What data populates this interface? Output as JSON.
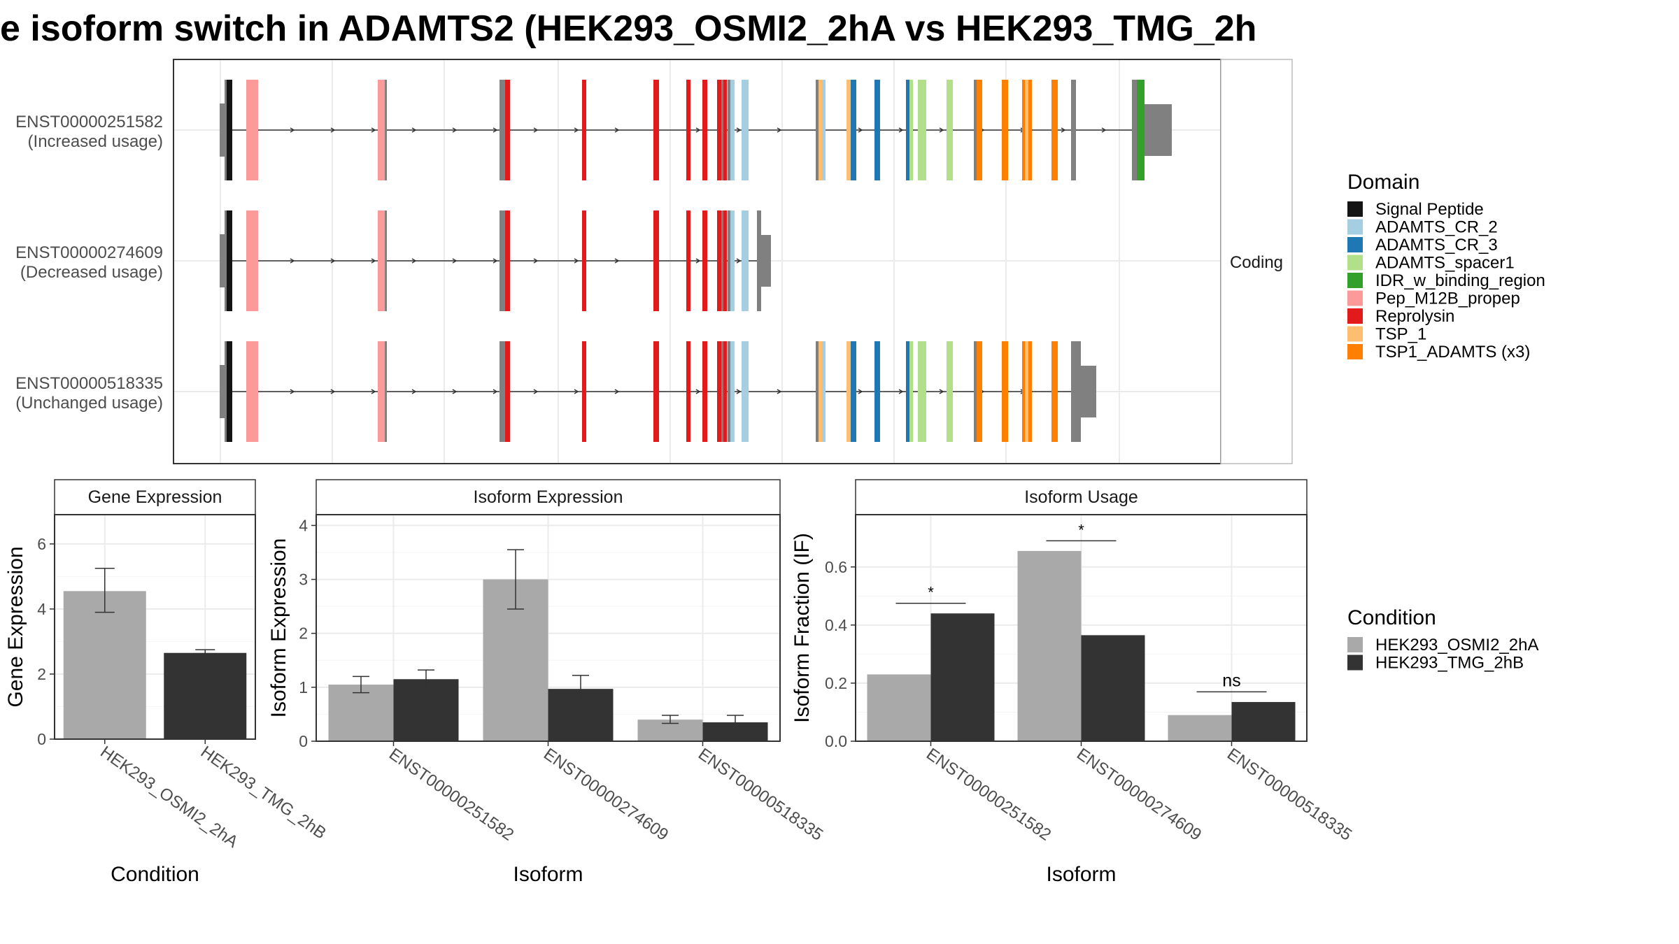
{
  "title": "e isoform switch in ADAMTS2 (HEK293_OSMI2_2hA vs HEK293_TMG_2h",
  "structure": {
    "strip_label": "Coding",
    "isoforms": [
      {
        "id": "ENST00000251582",
        "note": "(Increased usage)"
      },
      {
        "id": "ENST00000274609",
        "note": "(Decreased usage)"
      },
      {
        "id": "ENST00000518335",
        "note": "(Unchanged usage)"
      }
    ]
  },
  "domain_legend": {
    "title": "Domain",
    "items": [
      {
        "label": "Signal Peptide",
        "color": "#141414"
      },
      {
        "label": "ADAMTS_CR_2",
        "color": "#a6cee3"
      },
      {
        "label": "ADAMTS_CR_3",
        "color": "#1f78b4"
      },
      {
        "label": "ADAMTS_spacer1",
        "color": "#b2df8a"
      },
      {
        "label": "IDR_w_binding_region",
        "color": "#33a02c"
      },
      {
        "label": "Pep_M12B_propep",
        "color": "#fb9a99"
      },
      {
        "label": "Reprolysin",
        "color": "#e31a1c"
      },
      {
        "label": "TSP_1",
        "color": "#fdbf6f"
      },
      {
        "label": "TSP1_ADAMTS (x3)",
        "color": "#ff7f00"
      }
    ]
  },
  "condition_legend": {
    "title": "Condition",
    "items": [
      {
        "label": "HEK293_OSMI2_2hA",
        "color": "#a9a9a9"
      },
      {
        "label": "HEK293_TMG_2hB",
        "color": "#333333"
      }
    ]
  },
  "chart_data": [
    {
      "type": "bar",
      "title": "Gene Expression",
      "xlabel": "Condition",
      "ylabel": "Gene Expression",
      "ylim": [
        0,
        6.9
      ],
      "yticks": [
        0,
        2,
        4,
        6
      ],
      "categories": [
        "HEK293_OSMI2_2hA",
        "HEK293_TMG_2hB"
      ],
      "values": [
        4.55,
        2.65
      ],
      "err_low": [
        3.9,
        2.55
      ],
      "err_high": [
        5.25,
        2.75
      ],
      "colors": [
        "#a9a9a9",
        "#333333"
      ]
    },
    {
      "type": "bar",
      "title": "Isoform Expression",
      "xlabel": "Isoform",
      "ylabel": "Isoform Expression",
      "ylim": [
        0,
        4.2
      ],
      "yticks": [
        0,
        1,
        2,
        3,
        4
      ],
      "categories": [
        "ENST00000251582",
        "ENST00000274609",
        "ENST00000518335"
      ],
      "series": [
        {
          "name": "HEK293_OSMI2_2hA",
          "color": "#a9a9a9",
          "values": [
            1.05,
            3.0,
            0.4
          ],
          "err_low": [
            0.9,
            2.45,
            0.33
          ],
          "err_high": [
            1.2,
            3.55,
            0.48
          ]
        },
        {
          "name": "HEK293_TMG_2hB",
          "color": "#333333",
          "values": [
            1.15,
            0.97,
            0.35
          ],
          "err_low": [
            0.98,
            0.72,
            0.22
          ],
          "err_high": [
            1.32,
            1.22,
            0.48
          ]
        }
      ]
    },
    {
      "type": "bar",
      "title": "Isoform Usage",
      "xlabel": "Isoform",
      "ylabel": "Isoform Fraction (IF)",
      "ylim": [
        0,
        0.78
      ],
      "yticks": [
        0.0,
        0.2,
        0.4,
        0.6
      ],
      "yticklabels": [
        "0.0",
        "0.2",
        "0.4",
        "0.6"
      ],
      "categories": [
        "ENST00000251582",
        "ENST00000274609",
        "ENST00000518335"
      ],
      "series": [
        {
          "name": "HEK293_OSMI2_2hA",
          "color": "#a9a9a9",
          "values": [
            0.23,
            0.655,
            0.09
          ]
        },
        {
          "name": "HEK293_TMG_2hB",
          "color": "#333333",
          "values": [
            0.44,
            0.365,
            0.135
          ]
        }
      ],
      "significance": [
        {
          "label": "*",
          "level": 0.475
        },
        {
          "label": "*",
          "level": 0.69
        },
        {
          "label": "ns",
          "level": 0.17
        }
      ]
    }
  ]
}
